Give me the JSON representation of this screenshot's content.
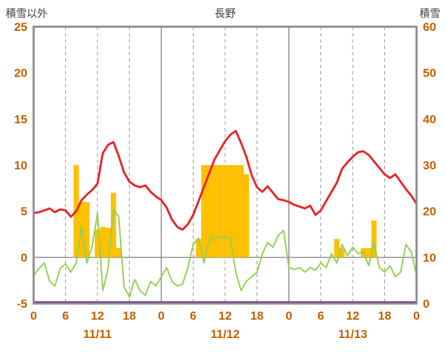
{
  "header": {
    "left_axis_title": "積雪以外",
    "chart_title": "長野",
    "right_axis_title": "積雪"
  },
  "colors": {
    "axis_text": "#bf6000",
    "title_text": "#3f3f3f",
    "border": "#8c8c8c",
    "grid_solid": "#8c8c8c",
    "grid_dashed": "#9a9a9a"
  },
  "chart_data": {
    "type": "line",
    "title": "長野",
    "left_axis": {
      "title": "積雪以外",
      "min": -5,
      "max": 25,
      "ticks": [
        25,
        20,
        15,
        10,
        5,
        0,
        -5
      ]
    },
    "right_axis": {
      "title": "積雪",
      "min": 0,
      "max": 60,
      "ticks": [
        60,
        50,
        40,
        30,
        20,
        10,
        0
      ]
    },
    "x_axis": {
      "hours_total": 72,
      "tick_interval_hours": 6,
      "tick_labels": [
        "0",
        "6",
        "12",
        "18",
        "0",
        "6",
        "12",
        "18",
        "0",
        "6",
        "12",
        "18",
        "0"
      ],
      "date_labels": [
        {
          "label": "11/11",
          "center_hour": 12
        },
        {
          "label": "11/12",
          "center_hour": 36
        },
        {
          "label": "11/13",
          "center_hour": 60
        }
      ]
    },
    "grid": {
      "day_boundary_hours": [
        24,
        48
      ],
      "dashed_hours": [
        6,
        12,
        18,
        30,
        36,
        42,
        54,
        60,
        66
      ],
      "zero_line_left_value": 0
    },
    "series": [
      {
        "name": "precipitation",
        "type": "bar",
        "axis": "left",
        "color": "#ffc000",
        "values": [
          0,
          0,
          0,
          0,
          0,
          0,
          0,
          0,
          10,
          6,
          6,
          0,
          3,
          3.3,
          3.2,
          7,
          1,
          0,
          0,
          0,
          0,
          0,
          0,
          0,
          0,
          0,
          0,
          0,
          0,
          0,
          0,
          2,
          10,
          10,
          10,
          10,
          10,
          10,
          10,
          10,
          9,
          0,
          0,
          0,
          0,
          0,
          0,
          0,
          0,
          0,
          0,
          0,
          0,
          0,
          0,
          0,
          0,
          2,
          1,
          0,
          0,
          0,
          1,
          1,
          4,
          0,
          0,
          0,
          0,
          0,
          0,
          0,
          0
        ]
      },
      {
        "name": "green-series",
        "type": "line",
        "axis": "left",
        "color": "#92d050",
        "stroke_width": 2,
        "values": [
          -2.0,
          -1.2,
          -0.6,
          -2.6,
          -3.1,
          -1.2,
          -0.7,
          -1.6,
          -0.6,
          3.4,
          -0.6,
          1.2,
          4.8,
          -3.6,
          -1.2,
          5.2,
          4.4,
          -3.2,
          -4.3,
          -2.4,
          -3.6,
          -4.1,
          -2.6,
          -3.1,
          -2.1,
          -1.1,
          -2.6,
          -3.1,
          -2.9,
          -1.1,
          1.4,
          2.1,
          -0.6,
          1.9,
          2.1,
          2.2,
          2.2,
          2.1,
          -1.6,
          -3.6,
          -2.6,
          -2.1,
          -1.6,
          0.4,
          1.6,
          1.1,
          2.4,
          2.9,
          -1.1,
          -1.3,
          -1.1,
          -1.6,
          -1.1,
          -1.4,
          -0.6,
          -1.1,
          0.4,
          -0.6,
          1.4,
          0.2,
          1.1,
          0.4,
          0.6,
          -0.9,
          1.6,
          -1.1,
          -1.6,
          -0.9,
          -2.1,
          -1.6,
          1.4,
          0.6,
          -1.9
        ]
      },
      {
        "name": "temperature",
        "type": "line",
        "axis": "left",
        "color": "#e8232a",
        "stroke_width": 3,
        "values": [
          4.8,
          4.9,
          5.1,
          5.3,
          4.9,
          5.2,
          5.1,
          4.4,
          5.0,
          6.2,
          6.8,
          7.3,
          8.0,
          11.3,
          12.2,
          12.5,
          11.0,
          9.2,
          8.2,
          7.8,
          7.6,
          7.8,
          7.1,
          6.6,
          6.2,
          5.4,
          4.1,
          3.3,
          3.0,
          3.6,
          4.6,
          6.1,
          7.6,
          9.1,
          10.6,
          11.6,
          12.6,
          13.3,
          13.7,
          12.4,
          10.9,
          8.9,
          7.6,
          7.1,
          7.7,
          7.0,
          6.3,
          6.2,
          6.0,
          5.7,
          5.5,
          5.3,
          5.6,
          4.6,
          5.1,
          6.1,
          7.1,
          8.1,
          9.6,
          10.3,
          10.9,
          11.4,
          11.5,
          11.1,
          10.4,
          9.7,
          9.0,
          8.6,
          9.0,
          8.2,
          7.4,
          6.7,
          5.8
        ]
      },
      {
        "name": "snow-depth",
        "type": "line",
        "axis": "right",
        "color": "#7030a0",
        "stroke_width": 2.5,
        "constant_value": 0
      }
    ]
  }
}
